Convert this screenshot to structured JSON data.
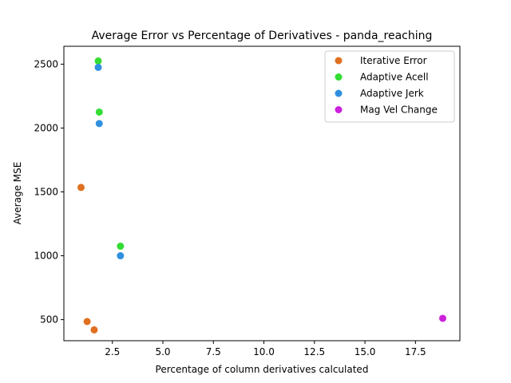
{
  "chart_data": {
    "type": "scatter",
    "title": "Average Error vs Percentage of Derivatives - panda_reaching",
    "xlabel": "Percentage of column derivatives calculated",
    "ylabel": "Average MSE",
    "xlim": [
      0.1,
      19.7
    ],
    "ylim": [
      335,
      2640
    ],
    "xticks": [
      2.5,
      5.0,
      7.5,
      10.0,
      12.5,
      15.0,
      17.5
    ],
    "xtick_labels": [
      "2.5",
      "5.0",
      "7.5",
      "10.0",
      "12.5",
      "15.0",
      "17.5"
    ],
    "yticks": [
      500,
      1000,
      1500,
      2000,
      2500
    ],
    "ytick_labels": [
      "500",
      "1000",
      "1500",
      "2000",
      "2500"
    ],
    "grid": false,
    "legend_position": "top-right",
    "series": [
      {
        "name": "Iterative Error",
        "color": "#e07020",
        "x": [
          0.95,
          1.25,
          1.6
        ],
        "y": [
          1535,
          485,
          420
        ]
      },
      {
        "name": "Adaptive Acell",
        "color": "#33dd33",
        "x": [
          1.8,
          1.85,
          2.9
        ],
        "y": [
          2525,
          2125,
          1075
        ]
      },
      {
        "name": "Adaptive Jerk",
        "color": "#3090e0",
        "x": [
          1.8,
          1.85,
          2.9
        ],
        "y": [
          2475,
          2035,
          1000
        ]
      },
      {
        "name": "Mag Vel Change",
        "color": "#cc22dd",
        "x": [
          18.85
        ],
        "y": [
          510
        ]
      }
    ]
  }
}
